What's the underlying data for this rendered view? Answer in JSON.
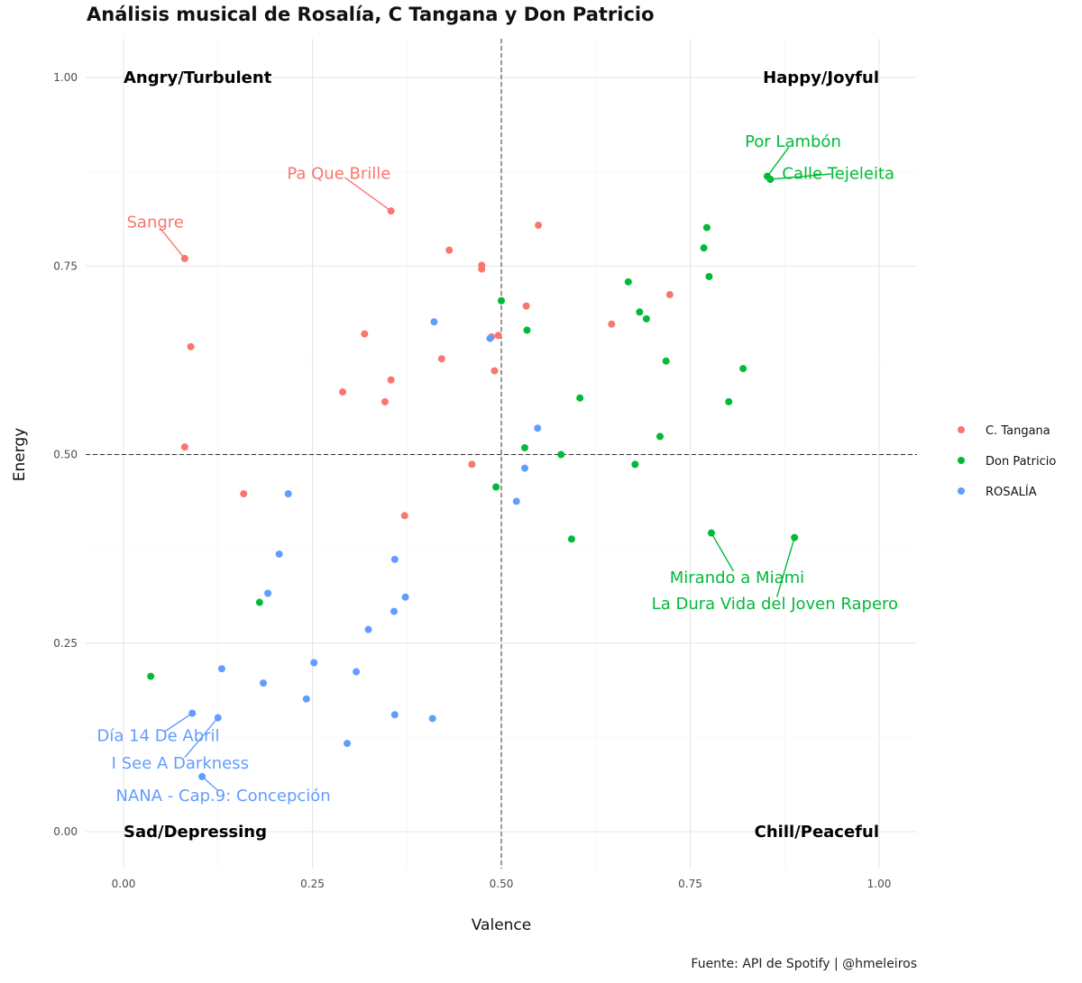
{
  "title": "Análisis musical de Rosalía, C Tangana y Don Patricio",
  "caption": "Fuente: API de Spotify   |   @hmeleiros",
  "colors": {
    "C. Tangana": "#F8766D",
    "Don Patricio": "#00BA38",
    "ROSALÍA": "#619CFF"
  },
  "chart_data": {
    "type": "scatter",
    "title": "Análisis musical de Rosalía, C Tangana y Don Patricio",
    "xlabel": "Valence",
    "ylabel": "Energy",
    "xlim": [
      0,
      1
    ],
    "ylim": [
      0,
      1
    ],
    "x_ticks": [
      "0.00",
      "0.25",
      "0.50",
      "0.75",
      "1.00"
    ],
    "y_ticks": [
      "0.00",
      "0.25",
      "0.50",
      "0.75",
      "1.00"
    ],
    "grid": true,
    "reference_lines": {
      "x": 0.5,
      "y": 0.5,
      "style": "dashed"
    },
    "legend_position": "right",
    "quadrant_labels": [
      {
        "text": "Angry/Turbulent",
        "x": 0.0,
        "y": 1.0,
        "anchor": "start"
      },
      {
        "text": "Happy/Joyful",
        "x": 1.0,
        "y": 1.0,
        "anchor": "end"
      },
      {
        "text": "Sad/Depressing",
        "x": 0.0,
        "y": 0.0,
        "anchor": "start"
      },
      {
        "text": "Chill/Peaceful",
        "x": 1.0,
        "y": 0.0,
        "anchor": "end"
      }
    ],
    "series": [
      {
        "name": "C. Tangana",
        "points": [
          [
            0.081,
            0.76
          ],
          [
            0.354,
            0.823
          ],
          [
            0.549,
            0.804
          ],
          [
            0.431,
            0.771
          ],
          [
            0.474,
            0.751
          ],
          [
            0.474,
            0.746
          ],
          [
            0.533,
            0.697
          ],
          [
            0.723,
            0.712
          ],
          [
            0.646,
            0.673
          ],
          [
            0.319,
            0.66
          ],
          [
            0.487,
            0.656
          ],
          [
            0.496,
            0.658
          ],
          [
            0.089,
            0.643
          ],
          [
            0.421,
            0.627
          ],
          [
            0.491,
            0.611
          ],
          [
            0.354,
            0.599
          ],
          [
            0.29,
            0.583
          ],
          [
            0.346,
            0.57
          ],
          [
            0.081,
            0.51
          ],
          [
            0.461,
            0.487
          ],
          [
            0.159,
            0.448
          ],
          [
            0.372,
            0.419
          ]
        ]
      },
      {
        "name": "Don Patricio",
        "points": [
          [
            0.852,
            0.869
          ],
          [
            0.856,
            0.865
          ],
          [
            0.772,
            0.801
          ],
          [
            0.768,
            0.774
          ],
          [
            0.775,
            0.736
          ],
          [
            0.668,
            0.729
          ],
          [
            0.5,
            0.704
          ],
          [
            0.534,
            0.665
          ],
          [
            0.683,
            0.689
          ],
          [
            0.692,
            0.68
          ],
          [
            0.718,
            0.624
          ],
          [
            0.82,
            0.614
          ],
          [
            0.604,
            0.575
          ],
          [
            0.801,
            0.57
          ],
          [
            0.71,
            0.524
          ],
          [
            0.531,
            0.509
          ],
          [
            0.579,
            0.5
          ],
          [
            0.677,
            0.487
          ],
          [
            0.493,
            0.457
          ],
          [
            0.593,
            0.388
          ],
          [
            0.778,
            0.396
          ],
          [
            0.888,
            0.39
          ],
          [
            0.18,
            0.304
          ],
          [
            0.036,
            0.206
          ]
        ]
      },
      {
        "name": "ROSALÍA",
        "points": [
          [
            0.411,
            0.676
          ],
          [
            0.485,
            0.654
          ],
          [
            0.548,
            0.535
          ],
          [
            0.531,
            0.482
          ],
          [
            0.52,
            0.438
          ],
          [
            0.218,
            0.448
          ],
          [
            0.206,
            0.368
          ],
          [
            0.359,
            0.361
          ],
          [
            0.191,
            0.316
          ],
          [
            0.373,
            0.311
          ],
          [
            0.358,
            0.292
          ],
          [
            0.324,
            0.268
          ],
          [
            0.252,
            0.224
          ],
          [
            0.13,
            0.216
          ],
          [
            0.308,
            0.212
          ],
          [
            0.185,
            0.197
          ],
          [
            0.242,
            0.176
          ],
          [
            0.091,
            0.157
          ],
          [
            0.125,
            0.151
          ],
          [
            0.359,
            0.155
          ],
          [
            0.409,
            0.15
          ],
          [
            0.296,
            0.117
          ],
          [
            0.104,
            0.073
          ]
        ]
      }
    ],
    "annotations": [
      {
        "text": "Sangre",
        "series": "C. Tangana",
        "point": [
          0.081,
          0.76
        ],
        "label_at": [
          0.042,
          0.808
        ]
      },
      {
        "text": "Pa Que Brille",
        "series": "C. Tangana",
        "point": [
          0.354,
          0.823
        ],
        "label_at": [
          0.285,
          0.873
        ]
      },
      {
        "text": "Por Lambón",
        "series": "Don Patricio",
        "point": [
          0.852,
          0.869
        ],
        "label_at": [
          0.886,
          0.915
        ]
      },
      {
        "text": "Calle Tejeleita",
        "series": "Don Patricio",
        "point": [
          0.856,
          0.865
        ],
        "label_at": [
          0.946,
          0.873
        ]
      },
      {
        "text": "Mirando a Miami",
        "series": "Don Patricio",
        "point": [
          0.778,
          0.396
        ],
        "label_at": [
          0.812,
          0.337
        ]
      },
      {
        "text": "La Dura Vida del Joven Rapero",
        "series": "Don Patricio",
        "point": [
          0.888,
          0.39
        ],
        "label_at": [
          0.862,
          0.302
        ]
      },
      {
        "text": "Día 14 De Abril",
        "series": "ROSALÍA",
        "point": [
          0.091,
          0.157
        ],
        "label_at": [
          0.046,
          0.127
        ]
      },
      {
        "text": "I See A Darkness",
        "series": "ROSALÍA",
        "point": [
          0.125,
          0.151
        ],
        "label_at": [
          0.075,
          0.091
        ]
      },
      {
        "text": "NANA - Cap.9: Concepción",
        "series": "ROSALÍA",
        "point": [
          0.104,
          0.073
        ],
        "label_at": [
          0.132,
          0.048
        ]
      }
    ]
  }
}
